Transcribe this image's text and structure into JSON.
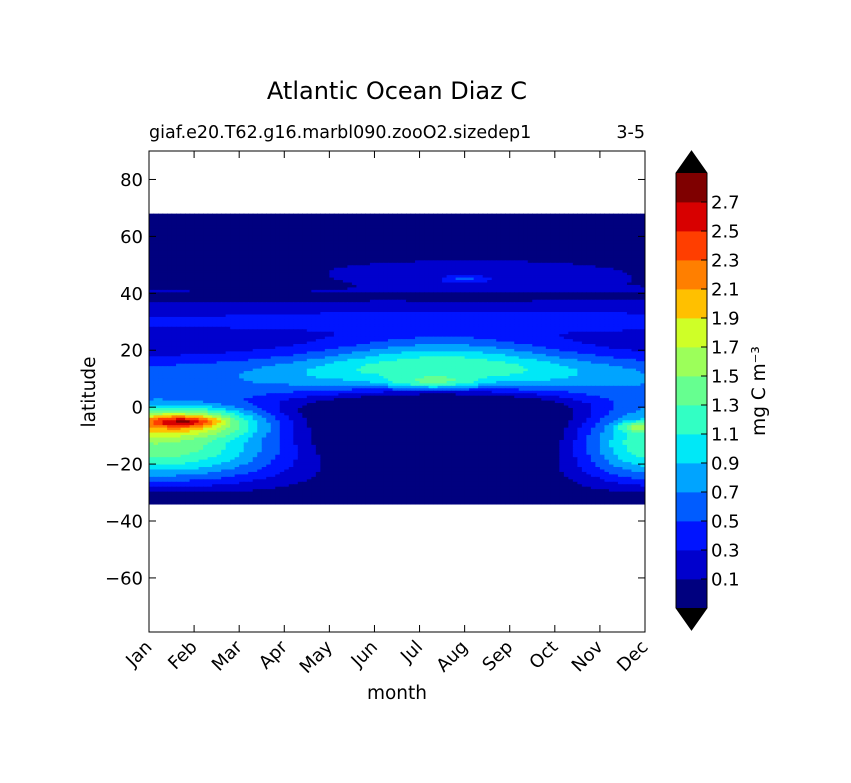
{
  "chart_data": {
    "type": "heatmap",
    "title": "Atlantic Ocean Diaz C",
    "subtitle_left": "giaf.e20.T62.g16.marbl090.zooO2.sizedep1",
    "subtitle_right": "3-5",
    "xlabel": "month",
    "ylabel": "latitude",
    "x_categories": [
      "Jan",
      "Feb",
      "Mar",
      "Apr",
      "May",
      "Jun",
      "Jul",
      "Aug",
      "Sep",
      "Oct",
      "Nov",
      "Dec"
    ],
    "yticks": [
      80,
      60,
      40,
      20,
      0,
      -20,
      -40,
      -60
    ],
    "ylim": [
      -79,
      90
    ],
    "data_lat_range": [
      -34,
      68
    ],
    "colorbar": {
      "label": "mg C m⁻³",
      "levels": [
        0.0,
        0.2,
        0.4,
        0.6,
        0.8,
        1.0,
        1.2,
        1.4,
        1.6,
        1.8,
        2.0,
        2.2,
        2.4,
        2.6,
        2.8
      ],
      "tick_labels": [
        "0.1",
        "0.3",
        "0.5",
        "0.7",
        "0.9",
        "1.1",
        "1.3",
        "1.5",
        "1.7",
        "1.9",
        "2.1",
        "2.3",
        "2.5",
        "2.7"
      ],
      "colors": [
        "#00007f",
        "#0000cd",
        "#0014ff",
        "#005cff",
        "#00a4ff",
        "#00e8f7",
        "#32ffc4",
        "#66ff90",
        "#9cff5a",
        "#cfff27",
        "#ffc000",
        "#ff7f00",
        "#ff3e00",
        "#d80000",
        "#7f0000"
      ],
      "extend_colors": {
        "under": "#000000",
        "over": "#000000"
      }
    },
    "features": [
      {
        "type": "ellipse",
        "lon": 5.6,
        "lat": 42,
        "rx": 6,
        "ry": 12,
        "amp": -0.08
      },
      {
        "type": "ellipse",
        "lon": 7.0,
        "lat": 45,
        "rx": 0.9,
        "ry": 2.5,
        "amp": 0.35
      },
      {
        "type": "ellipse",
        "lon": 5.3,
        "lat": 37,
        "rx": 0.5,
        "ry": 2,
        "amp": 0.2
      },
      {
        "type": "ellipse",
        "lon": 6.3,
        "lat": 8.5,
        "rx": 1.8,
        "ry": 4,
        "amp": 0.5
      },
      {
        "type": "ellipse",
        "lon": 0.8,
        "lat": -5,
        "rx": 1.3,
        "ry": 3,
        "amp": 0.6
      },
      {
        "type": "ellipse",
        "lon": 11.0,
        "lat": -7,
        "rx": 1.0,
        "ry": 3,
        "amp": 0.6
      }
    ]
  }
}
